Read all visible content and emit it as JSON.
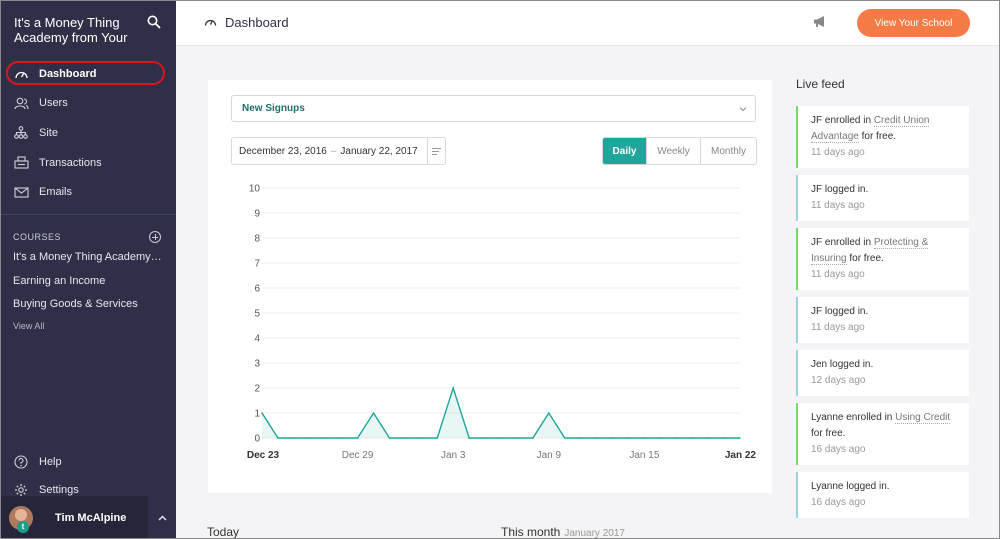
{
  "sidebar": {
    "school_name": "It's a Money Thing Academy from Your",
    "nav": [
      {
        "label": "Dashboard",
        "icon": "speedometer-icon",
        "active": true
      },
      {
        "label": "Users",
        "icon": "users-icon"
      },
      {
        "label": "Site",
        "icon": "sitemap-icon"
      },
      {
        "label": "Transactions",
        "icon": "cash-register-icon"
      },
      {
        "label": "Emails",
        "icon": "envelope-icon"
      }
    ],
    "courses_heading": "COURSES",
    "courses": [
      "It's a Money Thing Academy from Your Credit Union",
      "Earning an Income",
      "Buying Goods & Services"
    ],
    "view_all": "View All",
    "bottom_nav": [
      {
        "label": "Help",
        "icon": "help-icon"
      },
      {
        "label": "Settings",
        "icon": "gear-icon"
      }
    ],
    "user": {
      "name": "Tim McAlpine",
      "badge": "t"
    }
  },
  "header": {
    "title": "Dashboard",
    "cta": "View Your School"
  },
  "filters": {
    "metric": "New Signups",
    "date_from": "December 23, 2016",
    "date_to": "January 22, 2017",
    "periods": [
      "Daily",
      "Weekly",
      "Monthly"
    ],
    "active_period": "Daily"
  },
  "chart_data": {
    "type": "area",
    "title": "",
    "xlabel": "",
    "ylabel": "",
    "ylim": [
      0,
      10
    ],
    "yticks": [
      0,
      1,
      2,
      3,
      4,
      5,
      6,
      7,
      8,
      9,
      10
    ],
    "x_tick_labels": [
      "Dec 23",
      "Dec 29",
      "Jan 3",
      "Jan 9",
      "Jan 15",
      "Jan 22"
    ],
    "x_tick_indices": [
      0,
      6,
      12,
      18,
      24,
      30
    ],
    "grid": true,
    "color": "#1ea69a",
    "series": [
      {
        "values": [
          1,
          0,
          0,
          0,
          0,
          0,
          0,
          1,
          0,
          0,
          0,
          0,
          2,
          0,
          0,
          0,
          0,
          0,
          1,
          0,
          0,
          0,
          0,
          0,
          0,
          0,
          0,
          0,
          0,
          0,
          0
        ]
      }
    ]
  },
  "summary": {
    "today_label": "Today",
    "month_label": "This month",
    "month_value": "January 2017"
  },
  "live_feed": {
    "title": "Live feed",
    "items": [
      {
        "type": "enroll",
        "actor": "JF",
        "action": "enrolled in",
        "course": "Credit Union Advantage",
        "suffix": "for free.",
        "time": "11 days ago"
      },
      {
        "type": "login",
        "actor": "JF",
        "action": "logged in.",
        "time": "11 days ago"
      },
      {
        "type": "enroll",
        "actor": "JF",
        "action": "enrolled in",
        "course": "Protecting & Insuring",
        "suffix": "for free.",
        "time": "11 days ago"
      },
      {
        "type": "login",
        "actor": "JF",
        "action": "logged in.",
        "time": "11 days ago"
      },
      {
        "type": "login",
        "actor": "Jen",
        "action": "logged in.",
        "time": "12 days ago"
      },
      {
        "type": "enroll",
        "actor": "Lyanne",
        "action": "enrolled in",
        "course": "Using Credit",
        "suffix": "for free.",
        "time": "16 days ago"
      },
      {
        "type": "login",
        "actor": "Lyanne",
        "action": "logged in.",
        "time": "16 days ago"
      }
    ]
  }
}
